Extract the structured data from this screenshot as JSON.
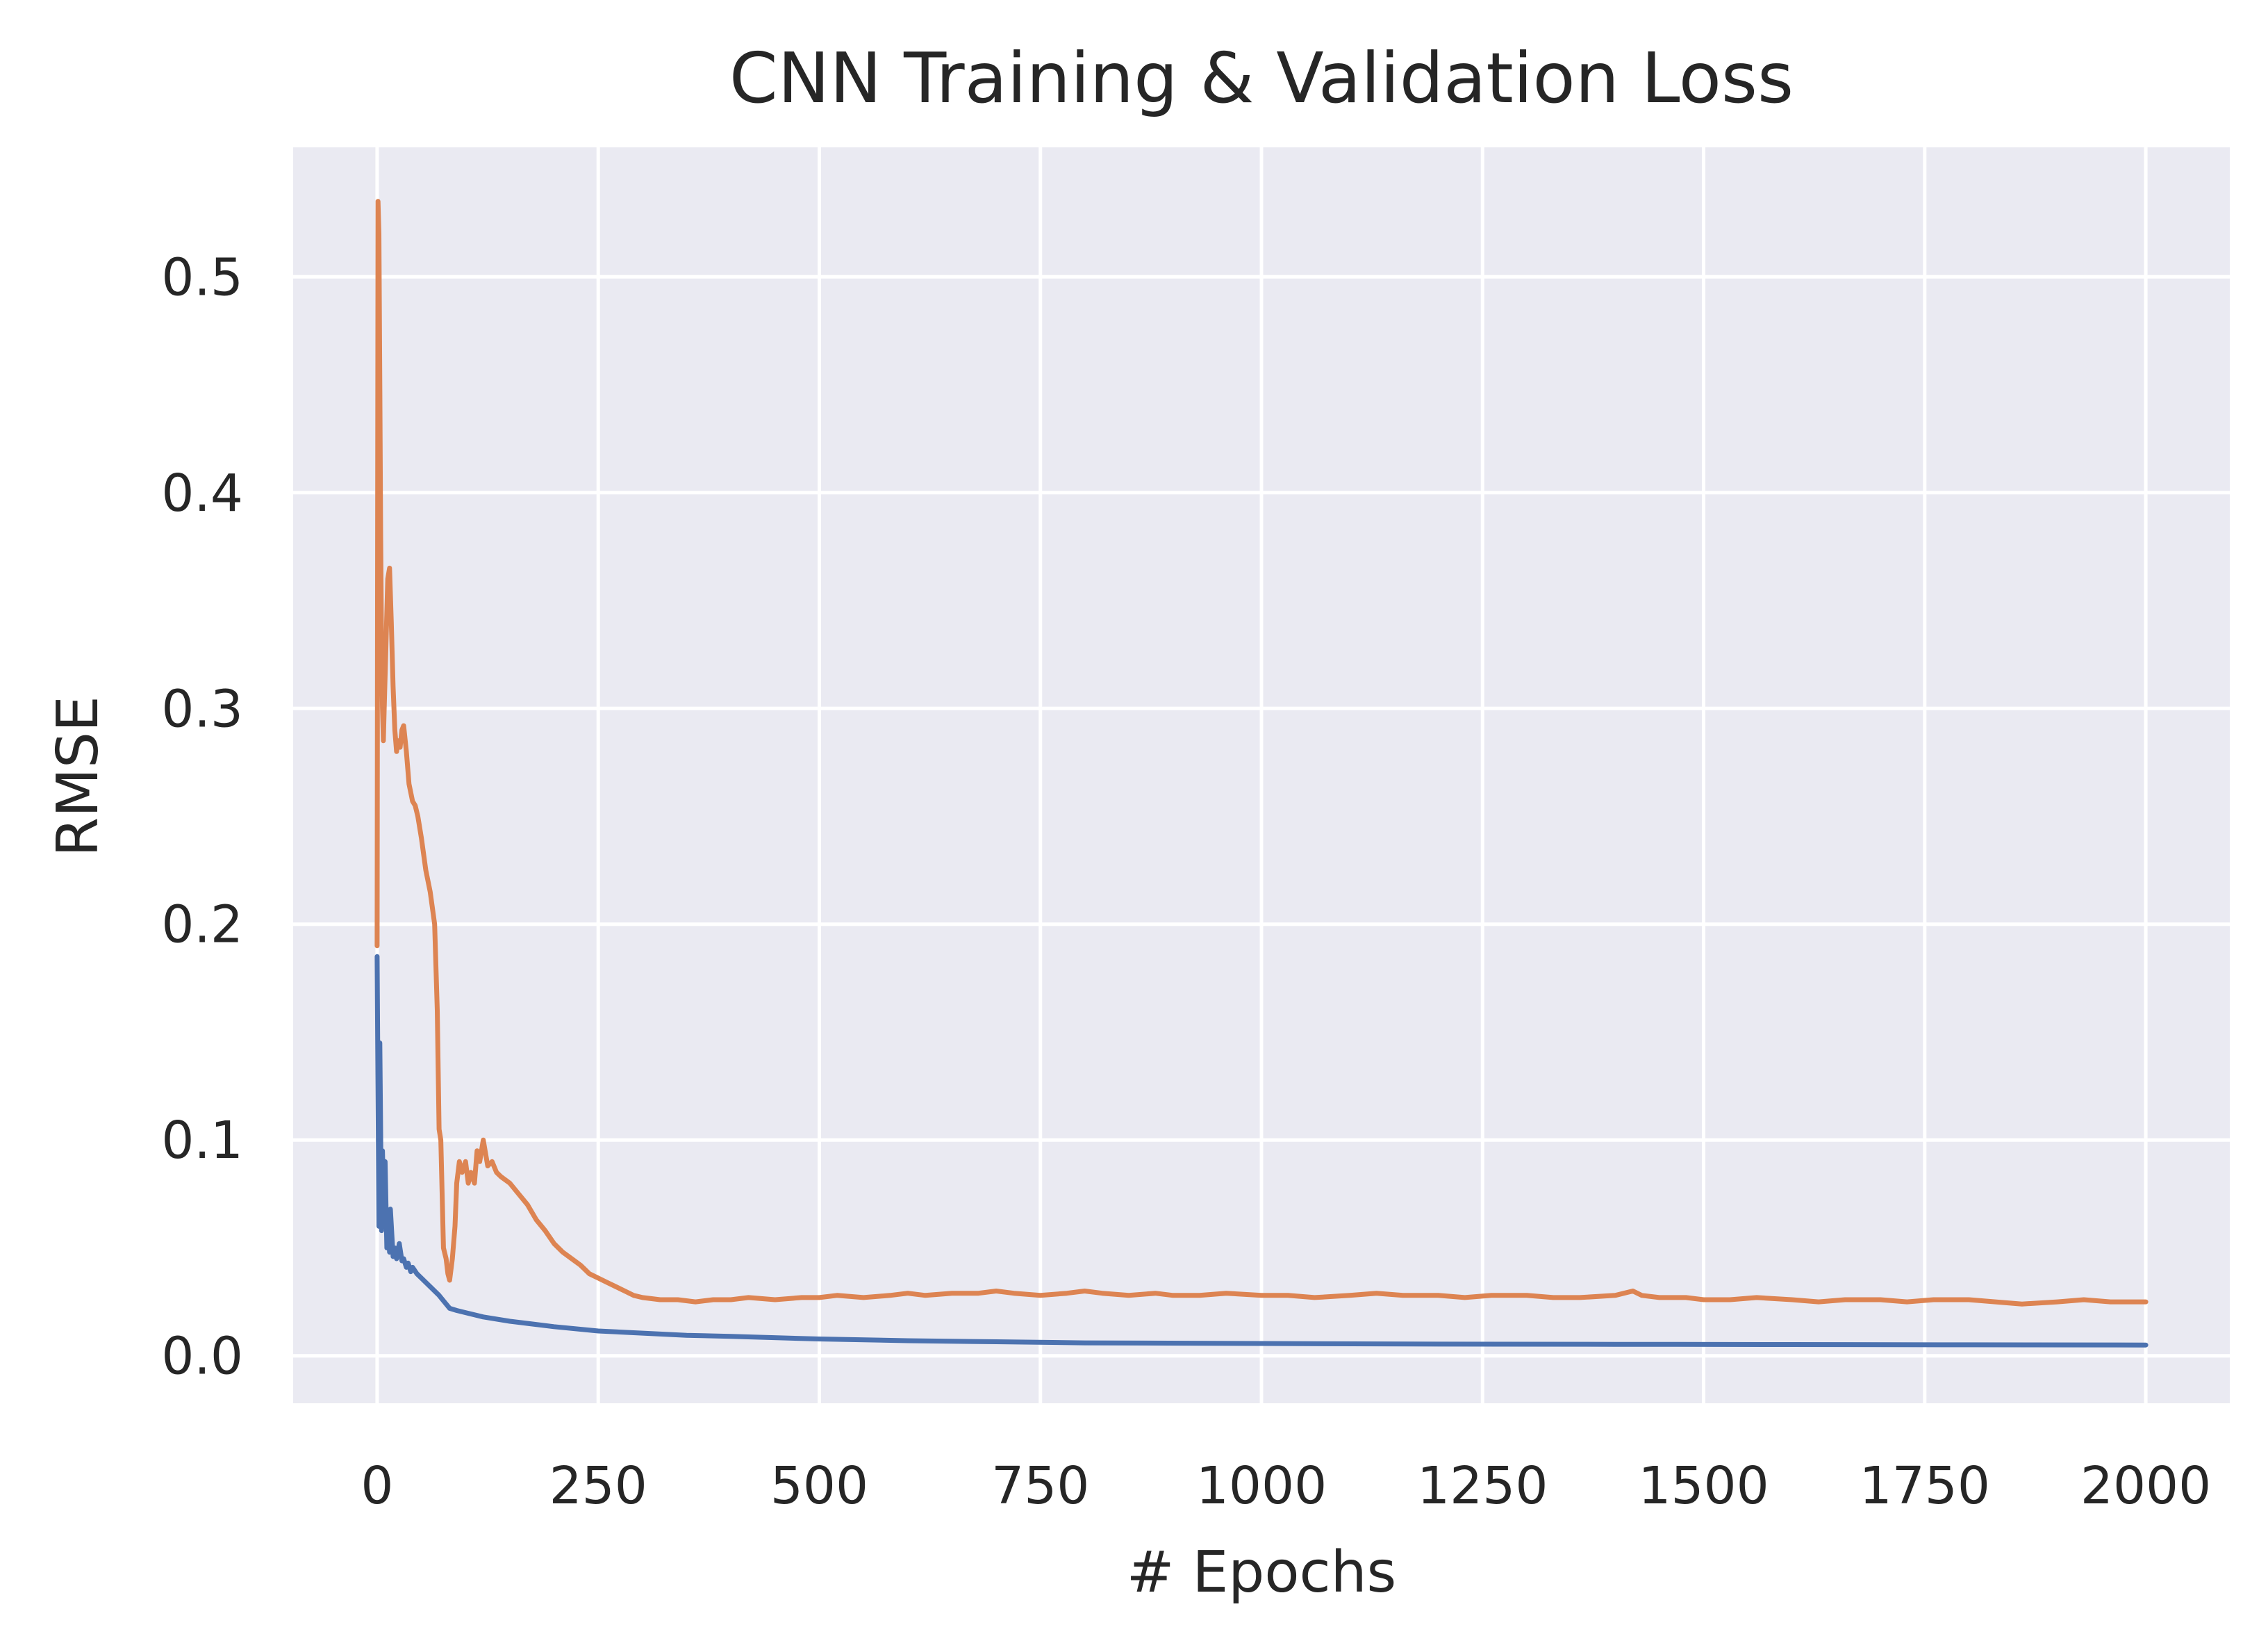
{
  "chart_data": {
    "type": "line",
    "title": "CNN Training & Validation Loss",
    "xlabel": "# Epochs",
    "ylabel": "RMSE",
    "xlim": [
      -95,
      2095
    ],
    "ylim": [
      -0.022,
      0.56
    ],
    "xticks": [
      0,
      250,
      500,
      750,
      1000,
      1250,
      1500,
      1750,
      2000
    ],
    "yticks": [
      0.0,
      0.1,
      0.2,
      0.3,
      0.4,
      0.5
    ],
    "ytick_labels": [
      "0.0",
      "0.1",
      "0.2",
      "0.3",
      "0.4",
      "0.5"
    ],
    "grid": true,
    "legend": "none",
    "background_color": "#eaeaf2",
    "series": [
      {
        "color": "#4c72b0",
        "x": [
          0,
          2,
          3,
          5,
          6,
          8,
          9,
          11,
          12,
          14,
          15,
          18,
          20,
          22,
          25,
          28,
          30,
          33,
          35,
          38,
          40,
          45,
          50,
          55,
          60,
          70,
          78,
          82,
          90,
          100,
          120,
          150,
          200,
          250,
          300,
          350,
          400,
          500,
          600,
          700,
          800,
          1000,
          1200,
          1400,
          1600,
          1800,
          2000
        ],
        "y": [
          0.185,
          0.06,
          0.145,
          0.058,
          0.095,
          0.06,
          0.09,
          0.05,
          0.065,
          0.048,
          0.068,
          0.046,
          0.05,
          0.045,
          0.052,
          0.044,
          0.045,
          0.041,
          0.043,
          0.039,
          0.041,
          0.038,
          0.036,
          0.034,
          0.032,
          0.028,
          0.024,
          0.022,
          0.021,
          0.02,
          0.018,
          0.016,
          0.0135,
          0.0115,
          0.0105,
          0.0095,
          0.009,
          0.0078,
          0.007,
          0.0065,
          0.006,
          0.0057,
          0.0054,
          0.0053,
          0.0052,
          0.0051,
          0.005
        ]
      },
      {
        "color": "#dd8452",
        "x": [
          0,
          1,
          2,
          3,
          4,
          5,
          6,
          7,
          8,
          10,
          12,
          14,
          16,
          18,
          20,
          22,
          24,
          26,
          28,
          30,
          33,
          36,
          40,
          43,
          46,
          50,
          55,
          60,
          65,
          68,
          70,
          72,
          75,
          78,
          80,
          82,
          85,
          88,
          90,
          93,
          96,
          100,
          103,
          106,
          110,
          113,
          116,
          120,
          125,
          130,
          135,
          140,
          150,
          160,
          170,
          180,
          190,
          200,
          210,
          220,
          230,
          240,
          250,
          260,
          270,
          280,
          290,
          300,
          320,
          340,
          360,
          380,
          400,
          420,
          450,
          480,
          500,
          520,
          550,
          580,
          600,
          620,
          650,
          680,
          700,
          720,
          750,
          780,
          800,
          820,
          850,
          880,
          900,
          930,
          960,
          1000,
          1030,
          1060,
          1100,
          1130,
          1160,
          1200,
          1230,
          1260,
          1300,
          1330,
          1360,
          1400,
          1420,
          1430,
          1450,
          1480,
          1500,
          1530,
          1560,
          1600,
          1630,
          1660,
          1700,
          1730,
          1760,
          1800,
          1830,
          1860,
          1900,
          1930,
          1960,
          2000
        ],
        "y": [
          0.19,
          0.535,
          0.52,
          0.45,
          0.38,
          0.33,
          0.3,
          0.285,
          0.3,
          0.33,
          0.36,
          0.365,
          0.34,
          0.31,
          0.29,
          0.28,
          0.285,
          0.282,
          0.29,
          0.292,
          0.28,
          0.265,
          0.257,
          0.255,
          0.25,
          0.24,
          0.225,
          0.215,
          0.2,
          0.16,
          0.105,
          0.1,
          0.05,
          0.045,
          0.038,
          0.035,
          0.045,
          0.06,
          0.08,
          0.09,
          0.085,
          0.09,
          0.08,
          0.085,
          0.08,
          0.095,
          0.09,
          0.1,
          0.088,
          0.09,
          0.085,
          0.083,
          0.08,
          0.075,
          0.07,
          0.063,
          0.058,
          0.052,
          0.048,
          0.045,
          0.042,
          0.038,
          0.036,
          0.034,
          0.032,
          0.03,
          0.028,
          0.027,
          0.026,
          0.026,
          0.025,
          0.026,
          0.026,
          0.027,
          0.026,
          0.027,
          0.027,
          0.028,
          0.027,
          0.028,
          0.029,
          0.028,
          0.029,
          0.029,
          0.03,
          0.029,
          0.028,
          0.029,
          0.03,
          0.029,
          0.028,
          0.029,
          0.028,
          0.028,
          0.029,
          0.028,
          0.028,
          0.027,
          0.028,
          0.029,
          0.028,
          0.028,
          0.027,
          0.028,
          0.028,
          0.027,
          0.027,
          0.028,
          0.03,
          0.028,
          0.027,
          0.027,
          0.026,
          0.026,
          0.027,
          0.026,
          0.025,
          0.026,
          0.026,
          0.025,
          0.026,
          0.026,
          0.025,
          0.024,
          0.025,
          0.026,
          0.025,
          0.025
        ]
      }
    ]
  }
}
